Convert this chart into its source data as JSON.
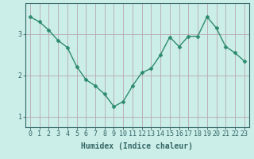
{
  "x": [
    0,
    1,
    2,
    3,
    4,
    5,
    6,
    7,
    8,
    9,
    10,
    11,
    12,
    13,
    14,
    15,
    16,
    17,
    18,
    19,
    20,
    21,
    22,
    23
  ],
  "y": [
    3.42,
    3.3,
    3.1,
    2.85,
    2.68,
    2.22,
    1.9,
    1.75,
    1.55,
    1.25,
    1.37,
    1.75,
    2.07,
    2.17,
    2.5,
    2.93,
    2.7,
    2.95,
    2.95,
    3.42,
    3.15,
    2.7,
    2.55,
    2.35
  ],
  "line_color": "#2e8b6e",
  "marker": "D",
  "marker_size": 2.5,
  "bg_color": "#cceee8",
  "grid_color": "#b8a8b0",
  "axis_color": "#336666",
  "xlabel": "Humidex (Indice chaleur)",
  "xlabel_fontsize": 7,
  "tick_fontsize": 6,
  "yticks": [
    1,
    2,
    3
  ],
  "ylim": [
    0.75,
    3.75
  ],
  "xlim": [
    -0.5,
    23.5
  ]
}
